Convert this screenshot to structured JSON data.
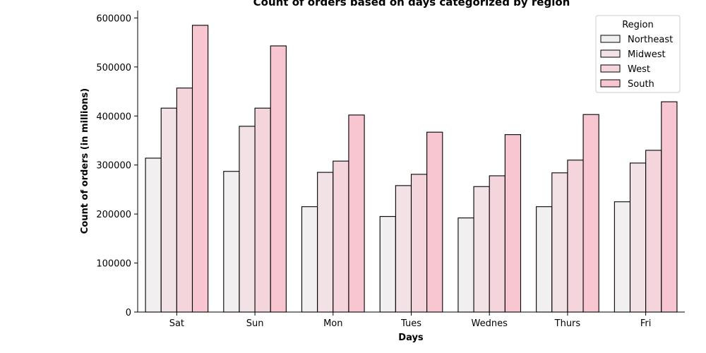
{
  "chart_data": {
    "type": "bar",
    "title": "Count of orders based on days categorized by region",
    "xlabel": "Days",
    "ylabel": "Count of orders (in millions)",
    "categories": [
      "Sat",
      "Sun",
      "Mon",
      "Tues",
      "Wednes",
      "Thurs",
      "Fri"
    ],
    "ylim": [
      0,
      615000
    ],
    "yticks": [
      0,
      100000,
      200000,
      300000,
      400000,
      500000,
      600000
    ],
    "legend": {
      "title": "Region",
      "position": "top-right"
    },
    "grid": false,
    "series": [
      {
        "name": "Northeast",
        "color": "#f1eff0",
        "values": [
          314000,
          287000,
          215000,
          195000,
          192000,
          215000,
          225000
        ]
      },
      {
        "name": "Midwest",
        "color": "#f2e2e6",
        "values": [
          416000,
          379000,
          285000,
          258000,
          256000,
          284000,
          304000
        ]
      },
      {
        "name": "West",
        "color": "#f5d5dc",
        "values": [
          457000,
          416000,
          308000,
          281000,
          278000,
          310000,
          330000
        ]
      },
      {
        "name": "South",
        "color": "#f7c6d0",
        "values": [
          585000,
          543000,
          402000,
          367000,
          362000,
          403000,
          429000
        ]
      }
    ]
  }
}
